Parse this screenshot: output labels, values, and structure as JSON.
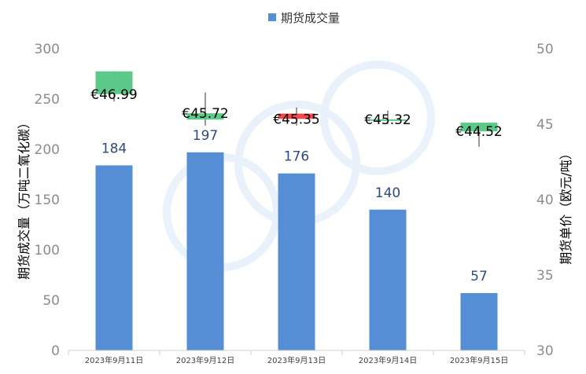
{
  "chart_data": {
    "type": "bar",
    "legend": {
      "label": "期货成交量",
      "position": "top"
    },
    "categories": [
      "2023年9月11日",
      "2023年9月12日",
      "2023年9月13日",
      "2023年9月14日",
      "2023年9月15日"
    ],
    "y_left": {
      "label": "期货成交量（万吨二氧化碳）",
      "range": [
        0,
        300
      ],
      "ticks": [
        "0",
        "50",
        "100",
        "150",
        "200",
        "250",
        "300"
      ]
    },
    "y_right": {
      "label": "期货单价（欧元/吨）",
      "range": [
        30,
        50
      ],
      "ticks": [
        "30",
        "35",
        "40",
        "45",
        "50"
      ]
    },
    "series": [
      {
        "name": "期货成交量",
        "type": "bar",
        "axis": "left",
        "color": "#558ed5",
        "values": [
          184,
          197,
          176,
          140,
          57
        ],
        "labels": [
          "184",
          "197",
          "176",
          "140",
          "57"
        ]
      },
      {
        "type": "candlestick",
        "axis": "right",
        "up_color": "#5bc98a",
        "down_color": "#f2484f",
        "open": [
          48.5,
          45.3,
          45.7,
          45.3,
          45.1
        ],
        "close": [
          46.99,
          45.72,
          45.35,
          45.32,
          44.52
        ],
        "high": [
          48.5,
          47.1,
          46.1,
          45.9,
          45.1
        ],
        "low": [
          46.5,
          44.9,
          44.9,
          45.0,
          43.5
        ],
        "direction": [
          "up",
          "up",
          "down",
          "up",
          "up"
        ],
        "labels": [
          "€46.99",
          "€45.72",
          "€45.35",
          "€45.32",
          "€44.52"
        ]
      }
    ],
    "grid": false
  }
}
